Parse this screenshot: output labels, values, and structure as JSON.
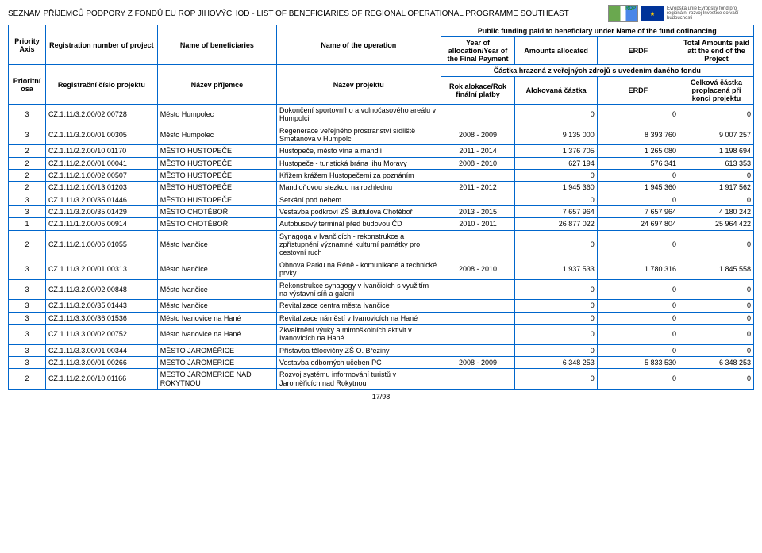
{
  "page_title": "SEZNAM PŘÍJEMCŮ PODPORY Z FONDŮ EU ROP JIHOVÝCHOD  -  LIST OF BENEFICIARIES OF REGIONAL OPERATIONAL PROGRAMME SOUTHEAST",
  "eu_caption": "Evropská unie\nEvropský fond pro regionální rozvoj\nInvestice do vaší budoucnosti",
  "header": {
    "super": "Public funding paid to beneficiary under Name of the fund cofinancing",
    "en": {
      "axis": "Priority Axis",
      "reg": "Registration number of project",
      "ben": "Name of beneficiaries",
      "op": "Name of the operation",
      "year": "Year of allocation/Year of the Final Payment",
      "amt": "Amounts allocated",
      "erdf": "ERDF",
      "tot": "Total Amounts paid att the end of the Project"
    },
    "sep": "Částka hrazená z veřejných zdrojů s uvedením daného fondu",
    "cz": {
      "axis": "Prioritní osa",
      "reg": "Registrační číslo projektu",
      "ben": "Název příjemce",
      "op": "Název projektu",
      "year": "Rok alokace/Rok finální platby",
      "amt": "Alokovaná částka",
      "erdf": "ERDF",
      "tot": "Celková částka proplacená při konci projektu"
    }
  },
  "rows": [
    {
      "axis": "3",
      "reg": "CZ.1.11/3.2.00/02.00728",
      "ben": "Město Humpolec",
      "op": "Dokončení sportovního a volnočasového areálu v Humpolci",
      "year": "",
      "amt": "0",
      "erdf": "0",
      "tot": "0"
    },
    {
      "axis": "3",
      "reg": "CZ.1.11/3.2.00/01.00305",
      "ben": "Město Humpolec",
      "op": "Regenerace veřejného prostranství sídliště Smetanova v Humpolci",
      "year": "2008 - 2009",
      "amt": "9 135 000",
      "erdf": "8 393 760",
      "tot": "9 007 257"
    },
    {
      "axis": "2",
      "reg": "CZ.1.11/2.2.00/10.01170",
      "ben": "MĚSTO HUSTOPEČE",
      "op": "Hustopeče, město vína a mandlí",
      "year": "2011 - 2014",
      "amt": "1 376 705",
      "erdf": "1 265 080",
      "tot": "1 198 694"
    },
    {
      "axis": "2",
      "reg": "CZ.1.11/2.2.00/01.00041",
      "ben": "MĚSTO HUSTOPEČE",
      "op": "Hustopeče - turistická brána jihu Moravy",
      "year": "2008 - 2010",
      "amt": "627 194",
      "erdf": "576 341",
      "tot": "613 353"
    },
    {
      "axis": "2",
      "reg": "CZ.1.11/2.1.00/02.00507",
      "ben": "MĚSTO HUSTOPEČE",
      "op": "Křížem krážem Hustopečemi za poznáním",
      "year": "",
      "amt": "0",
      "erdf": "0",
      "tot": "0"
    },
    {
      "axis": "2",
      "reg": "CZ.1.11/2.1.00/13.01203",
      "ben": "MĚSTO HUSTOPEČE",
      "op": "Mandloňovou stezkou na rozhlednu",
      "year": "2011 - 2012",
      "amt": "1 945 360",
      "erdf": "1 945 360",
      "tot": "1 917 562"
    },
    {
      "axis": "3",
      "reg": "CZ.1.11/3.2.00/35.01446",
      "ben": "MĚSTO HUSTOPEČE",
      "op": "Setkání pod nebem",
      "year": "",
      "amt": "0",
      "erdf": "0",
      "tot": "0"
    },
    {
      "axis": "3",
      "reg": "CZ.1.11/3.2.00/35.01429",
      "ben": "MĚSTO CHOTĚBOŘ",
      "op": "Vestavba podkroví ZŠ Buttulova Chotěboř",
      "year": "2013 - 2015",
      "amt": "7 657 964",
      "erdf": "7 657 964",
      "tot": "4 180 242"
    },
    {
      "axis": "1",
      "reg": "CZ.1.11/1.2.00/05.00914",
      "ben": "MĚSTO CHOTĚBOŘ",
      "op": "Autobusový terminál před budovou ČD",
      "year": "2010 - 2011",
      "amt": "26 877 022",
      "erdf": "24 697 804",
      "tot": "25 964 422"
    },
    {
      "axis": "2",
      "reg": "CZ.1.11/2.1.00/06.01055",
      "ben": "Město Ivančice",
      "op": "Synagoga v Ivančicích - rekonstrukce a zpřístupnění významné kulturní památky pro cestovní ruch",
      "year": "",
      "amt": "0",
      "erdf": "0",
      "tot": "0"
    },
    {
      "axis": "3",
      "reg": "CZ.1.11/3.2.00/01.00313",
      "ben": "Město Ivančice",
      "op": "Obnova Parku na Réně - komunikace a technické prvky",
      "year": "2008 - 2010",
      "amt": "1 937 533",
      "erdf": "1 780 316",
      "tot": "1 845 558"
    },
    {
      "axis": "3",
      "reg": "CZ.1.11/3.2.00/02.00848",
      "ben": "Město Ivančice",
      "op": "Rekonstrukce synagogy v Ivančicích s využitím na výstavní síň a galerii",
      "year": "",
      "amt": "0",
      "erdf": "0",
      "tot": "0"
    },
    {
      "axis": "3",
      "reg": "CZ.1.11/3.2.00/35.01443",
      "ben": "Město Ivančice",
      "op": "Revitalizace centra města Ivančice",
      "year": "",
      "amt": "0",
      "erdf": "0",
      "tot": "0"
    },
    {
      "axis": "3",
      "reg": "CZ.1.11/3.3.00/36.01536",
      "ben": "Město Ivanovice na Hané",
      "op": "Revitalizace náměstí v Ivanovicích na Hané",
      "year": "",
      "amt": "0",
      "erdf": "0",
      "tot": "0"
    },
    {
      "axis": "3",
      "reg": "CZ.1.11/3.3.00/02.00752",
      "ben": "Město Ivanovice na Hané",
      "op": "Zkvalitnění výuky a mimoškolních aktivit v Ivanovicích na Hané",
      "year": "",
      "amt": "0",
      "erdf": "0",
      "tot": "0"
    },
    {
      "axis": "3",
      "reg": "CZ.1.11/3.3.00/01.00344",
      "ben": "MĚSTO JAROMĚŘICE",
      "op": "Přístavba tělocvičny ZŠ O. Březiny",
      "year": "",
      "amt": "0",
      "erdf": "0",
      "tot": "0"
    },
    {
      "axis": "3",
      "reg": "CZ.1.11/3.3.00/01.00266",
      "ben": "MĚSTO JAROMĚŘICE",
      "op": "Vestavba odborných učeben PC",
      "year": "2008 - 2009",
      "amt": "6 348 253",
      "erdf": "5 833 530",
      "tot": "6 348 253"
    },
    {
      "axis": "2",
      "reg": "CZ.1.11/2.2.00/10.01166",
      "ben": "MĚSTO JAROMĚŘICE NAD ROKYTNOU",
      "op": "Rozvoj systému informování turistů v Jaroměřicích nad Rokytnou",
      "year": "",
      "amt": "0",
      "erdf": "0",
      "tot": "0"
    }
  ],
  "pagenum": "17/98",
  "colors": {
    "border": "#0066cc",
    "text": "#000000"
  }
}
